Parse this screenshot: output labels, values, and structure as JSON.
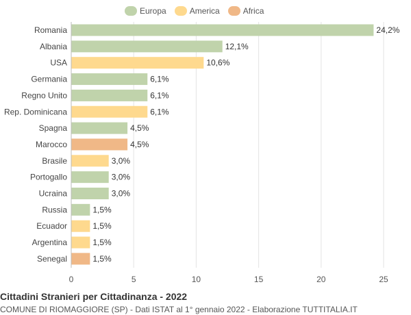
{
  "legend": [
    {
      "label": "Europa",
      "color": "#c0d3ab"
    },
    {
      "label": "America",
      "color": "#fed98e"
    },
    {
      "label": "Africa",
      "color": "#f0b887"
    }
  ],
  "footer": {
    "title": "Cittadini Stranieri per Cittadinanza - 2022",
    "subtitle": "COMUNE DI RIOMAGGIORE (SP) - Dati ISTAT al 1° gennaio 2022 - Elaborazione TUTTITALIA.IT"
  },
  "chart_data": {
    "type": "bar",
    "orientation": "horizontal",
    "categories": [
      "Romania",
      "Albania",
      "USA",
      "Germania",
      "Regno Unito",
      "Rep. Dominicana",
      "Spagna",
      "Marocco",
      "Brasile",
      "Portogallo",
      "Ucraina",
      "Russia",
      "Ecuador",
      "Argentina",
      "Senegal"
    ],
    "values": [
      24.2,
      12.1,
      10.6,
      6.1,
      6.1,
      6.1,
      4.5,
      4.5,
      3.0,
      3.0,
      3.0,
      1.5,
      1.5,
      1.5,
      1.5
    ],
    "value_labels": [
      "24,2%",
      "12,1%",
      "10,6%",
      "6,1%",
      "6,1%",
      "6,1%",
      "4,5%",
      "4,5%",
      "3,0%",
      "3,0%",
      "3,0%",
      "1,5%",
      "1,5%",
      "1,5%",
      "1,5%"
    ],
    "continent": [
      "Europa",
      "Europa",
      "America",
      "Europa",
      "Europa",
      "America",
      "Europa",
      "Africa",
      "America",
      "Europa",
      "Europa",
      "Europa",
      "America",
      "America",
      "Africa"
    ],
    "xlim": [
      0,
      25
    ],
    "xticks": [
      0,
      5,
      10,
      15,
      20,
      25
    ],
    "grid": true,
    "legend_position": "top-center"
  }
}
